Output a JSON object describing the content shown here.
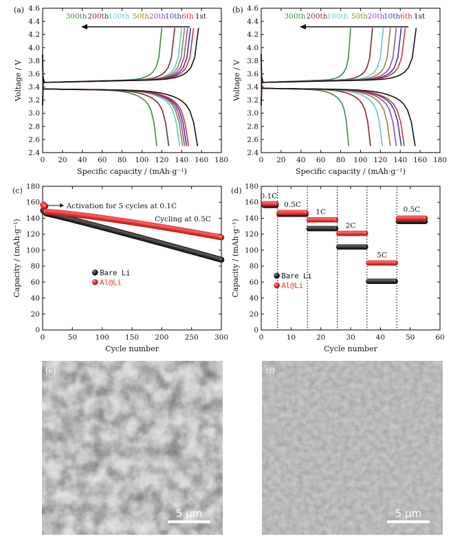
{
  "chart_data": [
    {
      "panel": "(a)",
      "type": "line",
      "xlabel": "Specific capacity / (mAh·g⁻¹)",
      "ylabel": "Voltage / V",
      "xlim": [
        0,
        180
      ],
      "ylim": [
        2.4,
        4.6
      ],
      "xticks": [
        0,
        20,
        40,
        60,
        80,
        100,
        120,
        140,
        160,
        180
      ],
      "yticks": [
        2.4,
        2.6,
        2.8,
        3.0,
        3.2,
        3.4,
        3.6,
        3.8,
        4.0,
        4.2,
        4.4,
        4.6
      ],
      "ytick_labels": [
        "2.4",
        "2.6",
        "2.8",
        "3.0",
        "3.2",
        "3.4",
        "3.6",
        "3.8",
        "4.0",
        "4.2",
        "4.4",
        "4.6"
      ],
      "charge_plateau": 3.47,
      "discharge_plateau": 3.37,
      "series": [
        {
          "name": "300th",
          "color": "#3d8a3d",
          "charge_end": 120,
          "discharge_end": 115
        },
        {
          "name": "200th",
          "color": "#7b2a2a",
          "charge_end": 133,
          "discharge_end": 127
        },
        {
          "name": "100th",
          "color": "#5cc8d8",
          "charge_end": 140,
          "discharge_end": 138
        },
        {
          "name": "50th",
          "color": "#8a8a2a",
          "charge_end": 143,
          "discharge_end": 141
        },
        {
          "name": "20th",
          "color": "#9b44b5",
          "charge_end": 146,
          "discharge_end": 143
        },
        {
          "name": "10th",
          "color": "#2a3fa8",
          "charge_end": 149,
          "discharge_end": 145
        },
        {
          "name": "6th",
          "color": "#e02a2a",
          "charge_end": 152,
          "discharge_end": 147
        },
        {
          "name": "1st",
          "color": "#111111",
          "charge_end": 157,
          "discharge_end": 156
        }
      ]
    },
    {
      "panel": "(b)",
      "type": "line",
      "xlabel": "Specific capacity / (mAh·g⁻¹)",
      "ylabel": "Voltage / V",
      "xlim": [
        0,
        180
      ],
      "ylim": [
        2.4,
        4.6
      ],
      "xticks": [
        0,
        20,
        40,
        60,
        80,
        100,
        120,
        140,
        160,
        180
      ],
      "yticks": [
        2.4,
        2.6,
        2.8,
        3.0,
        3.2,
        3.4,
        3.6,
        3.8,
        4.0,
        4.2,
        4.4,
        4.6
      ],
      "ytick_labels": [
        "2.4",
        "2.6",
        "2.8",
        "3.0",
        "3.2",
        "3.4",
        "3.6",
        "3.8",
        "4.0",
        "4.2",
        "4.4",
        "4.6"
      ],
      "charge_plateau": 3.47,
      "discharge_plateau": 3.38,
      "series": [
        {
          "name": "300th",
          "color": "#3d8a3d",
          "charge_end": 90,
          "discharge_end": 88
        },
        {
          "name": "200th",
          "color": "#7b2a2a",
          "charge_end": 112,
          "discharge_end": 110
        },
        {
          "name": "100th",
          "color": "#5cc8d8",
          "charge_end": 123,
          "discharge_end": 122
        },
        {
          "name": "50th",
          "color": "#8a8a2a",
          "charge_end": 130,
          "discharge_end": 130
        },
        {
          "name": "20th",
          "color": "#9b44b5",
          "charge_end": 136,
          "discharge_end": 136
        },
        {
          "name": "10th",
          "color": "#2a3fa8",
          "charge_end": 141,
          "discharge_end": 141
        },
        {
          "name": "6th",
          "color": "#e02a2a",
          "charge_end": 145,
          "discharge_end": 144
        },
        {
          "name": "1st",
          "color": "#111111",
          "charge_end": 156,
          "discharge_end": 155
        }
      ]
    },
    {
      "panel": "(c)",
      "type": "scatter",
      "xlabel": "Cycle number",
      "ylabel": "Capacity / (mAh·g⁻¹)",
      "xlim": [
        0,
        300
      ],
      "ylim": [
        0,
        180
      ],
      "xticks": [
        0,
        50,
        100,
        150,
        200,
        250,
        300
      ],
      "yticks": [
        0,
        20,
        40,
        60,
        80,
        100,
        120,
        140,
        160,
        180
      ],
      "annotations": [
        "Activation for 5 cycles at 0.1C",
        "Cycling at 0.5C"
      ],
      "legend_position": "middle-left",
      "series": [
        {
          "name": "Bare Li",
          "color": "#111111",
          "activation": [
            150,
            149,
            149,
            148,
            148
          ],
          "start": 146,
          "end": 88
        },
        {
          "name": "Al@Li",
          "color": "#e53030",
          "activation": [
            157,
            156,
            156,
            155,
            155
          ],
          "start": 148,
          "end": 116
        }
      ]
    },
    {
      "panel": "(d)",
      "type": "scatter",
      "xlabel": "Cycle number",
      "ylabel": "Capacity / (mAh·g⁻¹)",
      "xlim": [
        0,
        60
      ],
      "ylim": [
        0,
        180
      ],
      "xticks": [
        0,
        10,
        20,
        30,
        40,
        50,
        60
      ],
      "yticks": [
        0,
        20,
        40,
        60,
        80,
        100,
        120,
        140,
        160,
        180
      ],
      "rate_boundaries": [
        5.5,
        15.5,
        25.5,
        35.5,
        45.5
      ],
      "rate_labels": [
        {
          "text": "0.1C",
          "x": 2.5,
          "y": 165
        },
        {
          "text": "0.5C",
          "x": 10.5,
          "y": 154
        },
        {
          "text": "1C",
          "x": 20,
          "y": 145
        },
        {
          "text": "2C",
          "x": 30,
          "y": 128
        },
        {
          "text": "5C",
          "x": 40.5,
          "y": 91
        },
        {
          "text": "0.5C",
          "x": 50.5,
          "y": 148
        }
      ],
      "legend_position": "middle-left",
      "series": [
        {
          "name": "Bare Li",
          "color": "#111111",
          "segments": [
            {
              "from": 1,
              "to": 5,
              "value": 156
            },
            {
              "from": 6,
              "to": 15,
              "value": 145
            },
            {
              "from": 16,
              "to": 25,
              "value": 127
            },
            {
              "from": 26,
              "to": 35,
              "value": 104
            },
            {
              "from": 36,
              "to": 45,
              "value": 61
            },
            {
              "from": 46,
              "to": 55,
              "value": 136
            }
          ]
        },
        {
          "name": "Al@Li",
          "color": "#e53030",
          "segments": [
            {
              "from": 1,
              "to": 5,
              "value": 158
            },
            {
              "from": 6,
              "to": 15,
              "value": 147
            },
            {
              "from": 16,
              "to": 25,
              "value": 138
            },
            {
              "from": 26,
              "to": 35,
              "value": 121
            },
            {
              "from": 36,
              "to": 45,
              "value": 84
            },
            {
              "from": 46,
              "to": 55,
              "value": 140
            }
          ]
        }
      ]
    }
  ],
  "sem_images": [
    {
      "panel": "(e)",
      "scale_bar": "5 μm",
      "texture": "porous-rough"
    },
    {
      "panel": "(f)",
      "scale_bar": "5 μm",
      "texture": "smooth-dense"
    }
  ]
}
